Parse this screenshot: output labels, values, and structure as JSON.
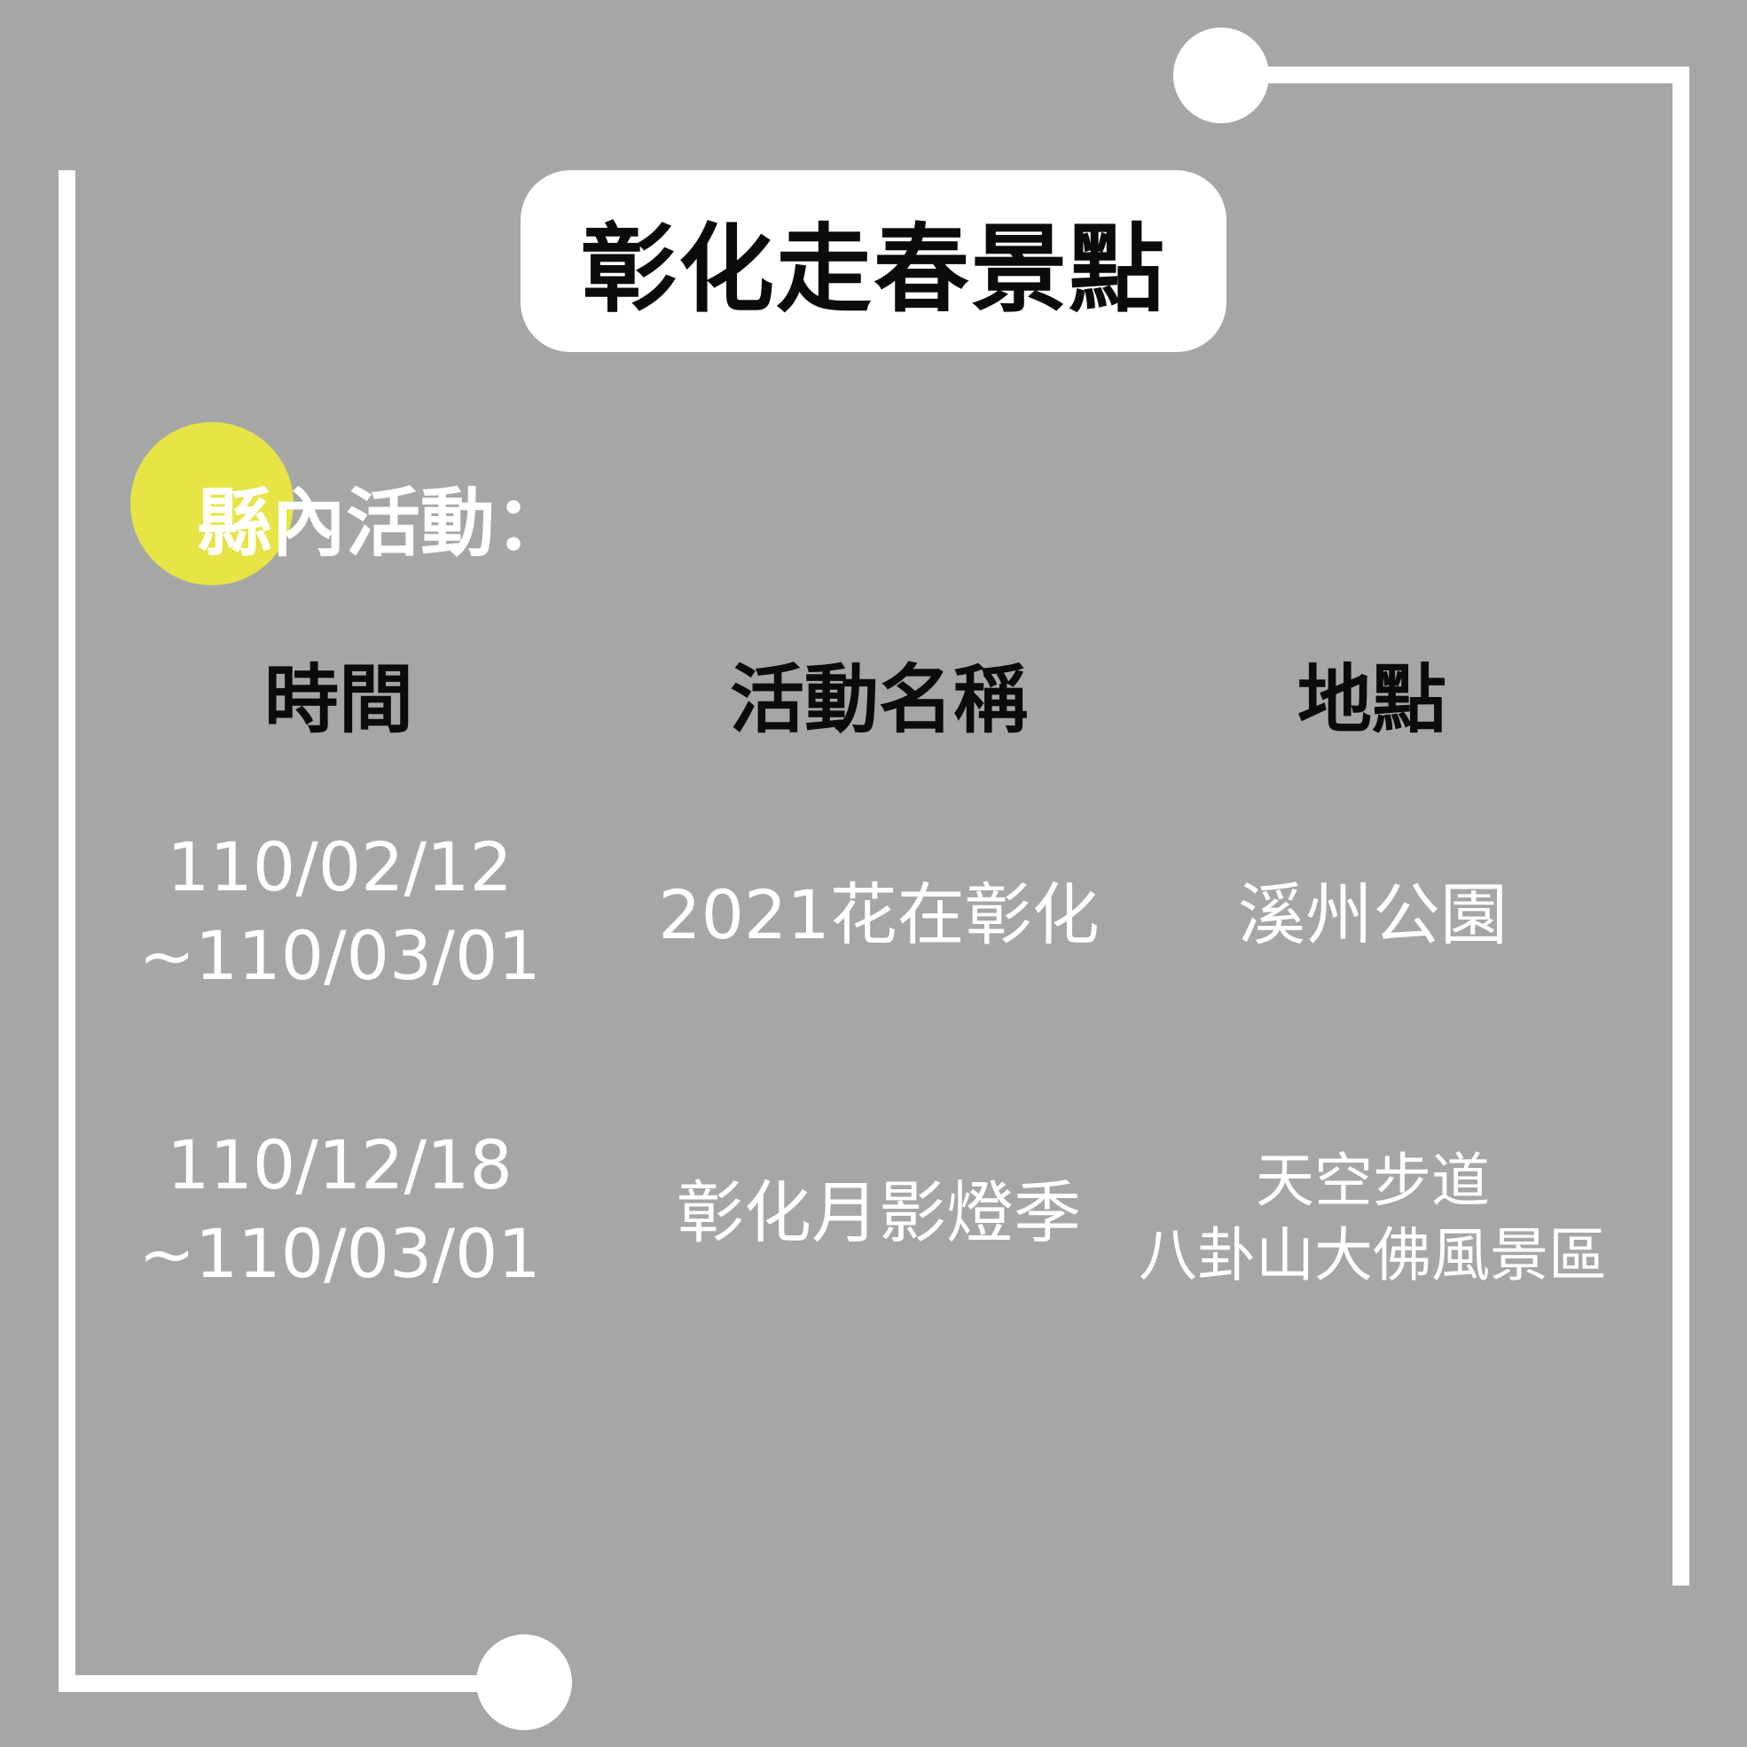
{
  "title": "彰化走春景點",
  "section_heading": "縣內活動：",
  "columns": {
    "time": "時間",
    "event_name": "活動名稱",
    "location": "地點"
  },
  "rows": [
    {
      "time": [
        "110/02/12",
        "~110/03/01"
      ],
      "event_name": "2021花在彰化",
      "location": [
        "溪州公園"
      ]
    },
    {
      "time": [
        "110/12/18",
        "~110/03/01"
      ],
      "event_name": "彰化月影燈季",
      "location": [
        "天空步道",
        "八卦山大佛風景區"
      ]
    }
  ],
  "colors": {
    "background": "#a7a6a7",
    "accent": "#e7e546",
    "title_text": "#0b0b0b",
    "body_text": "#ffffff"
  }
}
